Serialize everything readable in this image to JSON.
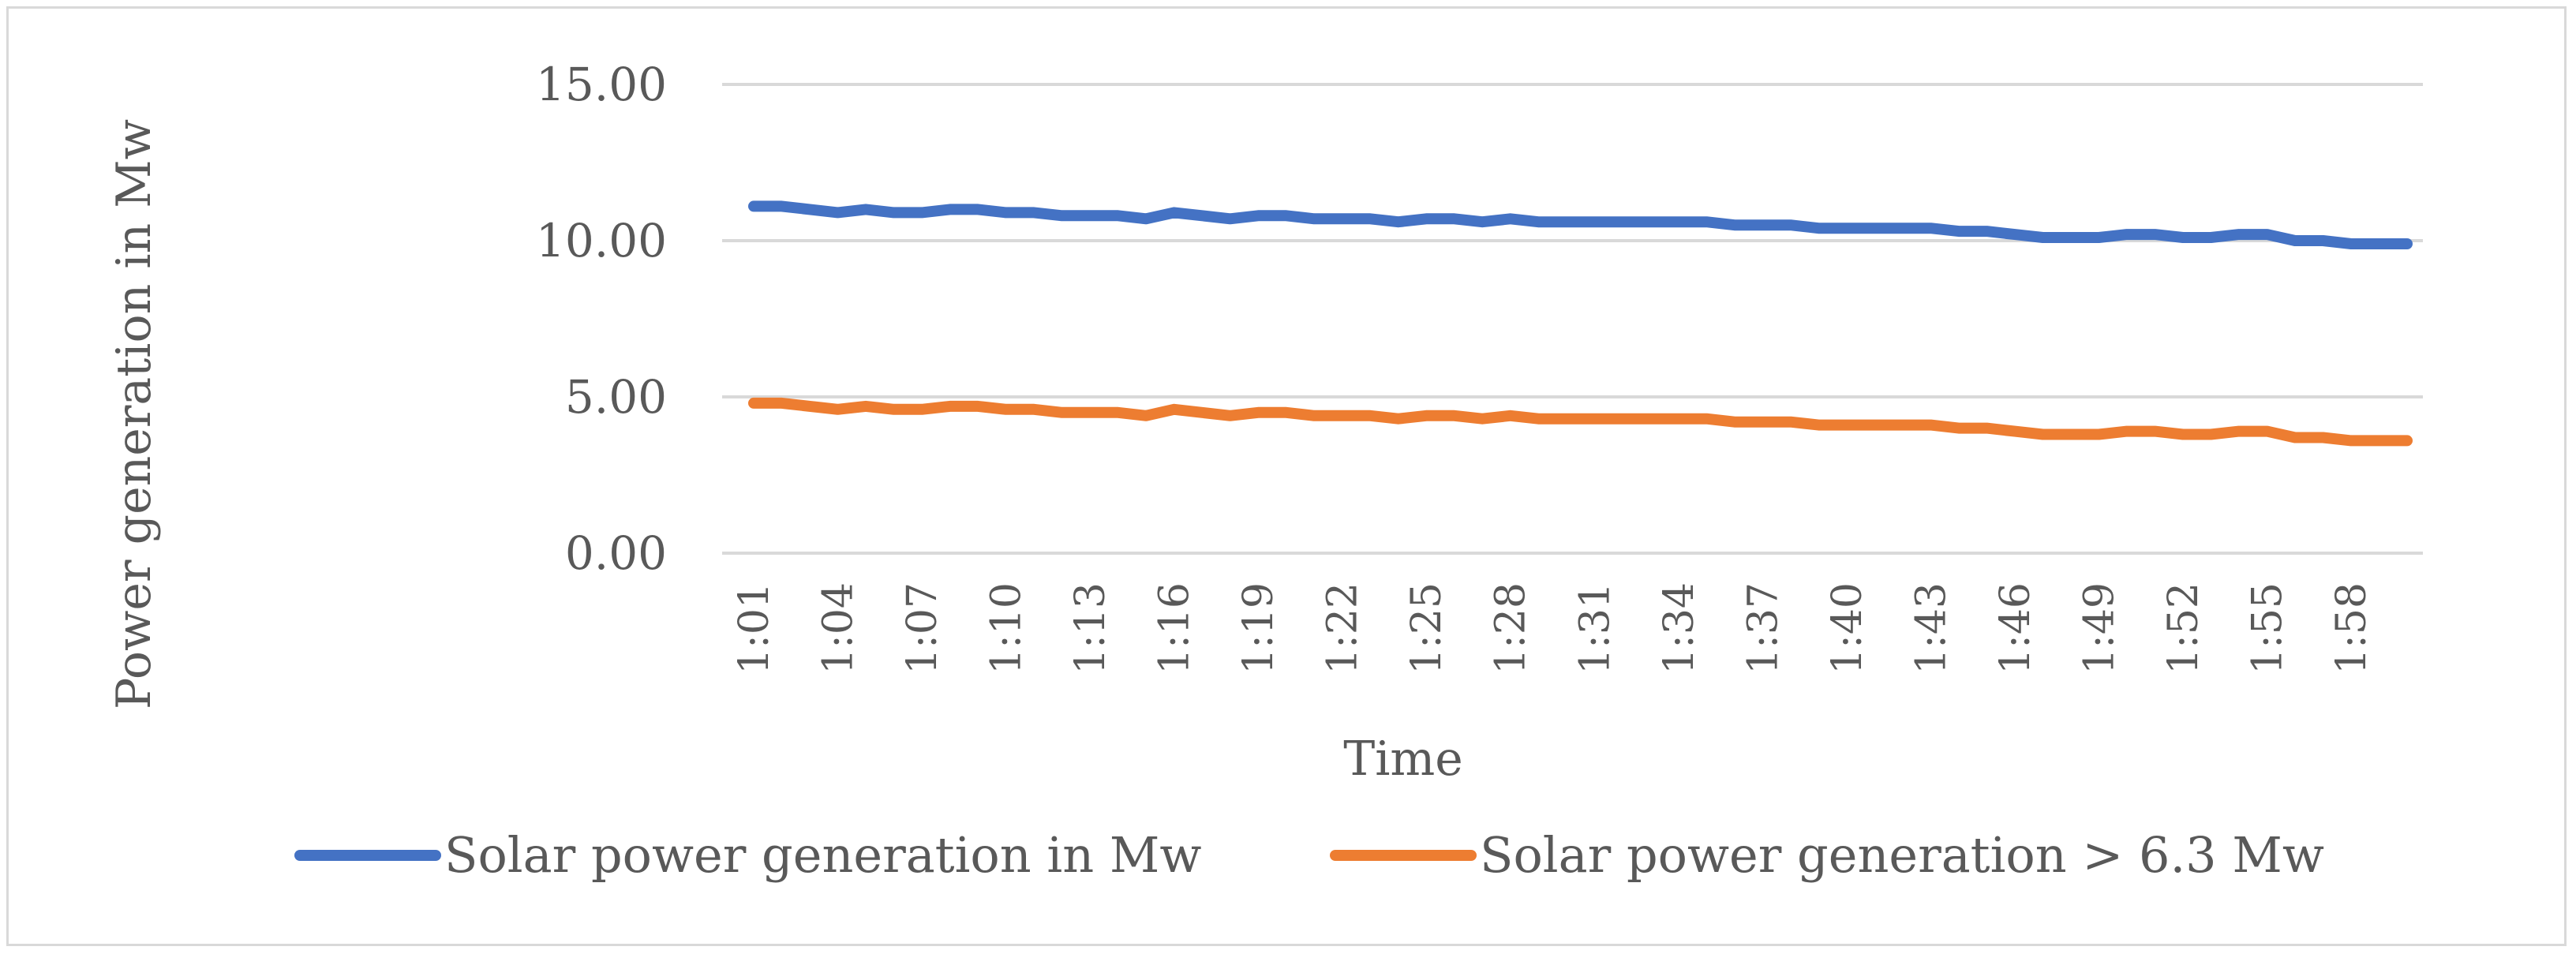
{
  "chart_data": {
    "type": "line",
    "title": "",
    "xlabel": "Time",
    "ylabel": "Power generation in Mw",
    "ylim": [
      0,
      15
    ],
    "yticks": [
      "0.00",
      "5.00",
      "10.00",
      "15.00"
    ],
    "grid": true,
    "legend_position": "bottom",
    "x": [
      "1:01",
      "1:02",
      "1:03",
      "1:04",
      "1:05",
      "1:06",
      "1:07",
      "1:08",
      "1:09",
      "1:10",
      "1:11",
      "1:12",
      "1:13",
      "1:14",
      "1:15",
      "1:16",
      "1:17",
      "1:18",
      "1:19",
      "1:20",
      "1:21",
      "1:22",
      "1:23",
      "1:24",
      "1:25",
      "1:26",
      "1:27",
      "1:28",
      "1:29",
      "1:30",
      "1:31",
      "1:32",
      "1:33",
      "1:34",
      "1:35",
      "1:36",
      "1:37",
      "1:38",
      "1:39",
      "1:40",
      "1:41",
      "1:42",
      "1:43",
      "1:44",
      "1:45",
      "1:46",
      "1:47",
      "1:48",
      "1:49",
      "1:50",
      "1:51",
      "1:52",
      "1:53",
      "1:54",
      "1:55",
      "1:56",
      "1:57",
      "1:58",
      "1:59",
      "2:00"
    ],
    "xtick_labels": [
      "1:01",
      "1:04",
      "1:07",
      "1:10",
      "1:13",
      "1:16",
      "1:19",
      "1:22",
      "1:25",
      "1:28",
      "1:31",
      "1:34",
      "1:37",
      "1:40",
      "1:43",
      "1:46",
      "1:49",
      "1:52",
      "1:55",
      "1:58"
    ],
    "series": [
      {
        "name": "Solar power generation in Mw",
        "color": "#4472C4",
        "values": [
          11.1,
          11.1,
          11.0,
          10.9,
          11.0,
          10.9,
          10.9,
          11.0,
          11.0,
          10.9,
          10.9,
          10.8,
          10.8,
          10.8,
          10.7,
          10.9,
          10.8,
          10.7,
          10.8,
          10.8,
          10.7,
          10.7,
          10.7,
          10.6,
          10.7,
          10.7,
          10.6,
          10.7,
          10.6,
          10.6,
          10.6,
          10.6,
          10.6,
          10.6,
          10.6,
          10.5,
          10.5,
          10.5,
          10.4,
          10.4,
          10.4,
          10.4,
          10.4,
          10.3,
          10.3,
          10.2,
          10.1,
          10.1,
          10.1,
          10.2,
          10.2,
          10.1,
          10.1,
          10.2,
          10.2,
          10.0,
          10.0,
          9.9,
          9.9,
          9.9
        ]
      },
      {
        "name": "Solar power generation > 6.3 Mw",
        "color": "#ED7D31",
        "values": [
          4.8,
          4.8,
          4.7,
          4.6,
          4.7,
          4.6,
          4.6,
          4.7,
          4.7,
          4.6,
          4.6,
          4.5,
          4.5,
          4.5,
          4.4,
          4.6,
          4.5,
          4.4,
          4.5,
          4.5,
          4.4,
          4.4,
          4.4,
          4.3,
          4.4,
          4.4,
          4.3,
          4.4,
          4.3,
          4.3,
          4.3,
          4.3,
          4.3,
          4.3,
          4.3,
          4.2,
          4.2,
          4.2,
          4.1,
          4.1,
          4.1,
          4.1,
          4.1,
          4.0,
          4.0,
          3.9,
          3.8,
          3.8,
          3.8,
          3.9,
          3.9,
          3.8,
          3.8,
          3.9,
          3.9,
          3.7,
          3.7,
          3.6,
          3.6,
          3.6
        ]
      }
    ]
  }
}
